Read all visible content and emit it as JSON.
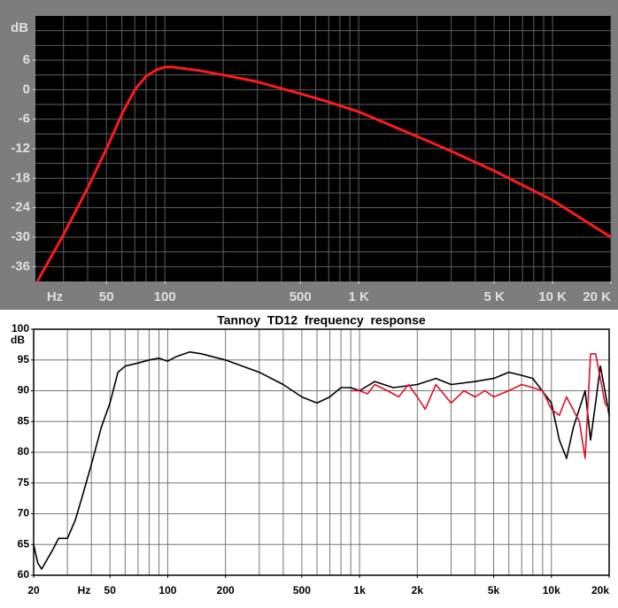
{
  "chart_data": [
    {
      "type": "line",
      "y_label": "dB",
      "x_label": "Hz",
      "xscale": "log",
      "grid": true,
      "xlim": [
        21.5,
        20000
      ],
      "ylim": [
        -39,
        15
      ],
      "xticks": [
        50,
        100,
        500,
        {
          "value": 1000,
          "label": "1 K"
        },
        {
          "value": 5000,
          "label": "5 K"
        },
        {
          "value": 10000,
          "label": "10 K"
        },
        {
          "value": 20000,
          "label": "20 K"
        }
      ],
      "yticks": [
        6,
        0,
        -6,
        -12,
        -18,
        -24,
        -30,
        -36
      ],
      "xgrid": [
        30,
        40,
        50,
        60,
        70,
        80,
        90,
        100,
        200,
        300,
        400,
        500,
        600,
        700,
        800,
        900,
        1000,
        2000,
        3000,
        4000,
        5000,
        6000,
        7000,
        8000,
        9000,
        10000,
        20000
      ],
      "ygrid": [
        12,
        9,
        6,
        3,
        0,
        -3,
        -6,
        -9,
        -12,
        -15,
        -18,
        -21,
        -24,
        -27,
        -30,
        -33,
        -36
      ],
      "series": [
        {
          "color": "#ff1a1a",
          "x": [
            22,
            30,
            40,
            50,
            60,
            70,
            80,
            90,
            100,
            110,
            150,
            200,
            300,
            500,
            700,
            1000,
            2000,
            3000,
            5000,
            10000,
            20000
          ],
          "values": [
            -39,
            -29.5,
            -20,
            -12,
            -5,
            0,
            2.7,
            4,
            4.6,
            4.6,
            3.9,
            3,
            1.6,
            -0.8,
            -2.5,
            -4.5,
            -9.5,
            -12.5,
            -16.5,
            -22.5,
            -30
          ]
        }
      ]
    },
    {
      "type": "line",
      "title": "Tannoy  TD12  frequency  response",
      "y_label": "dB",
      "x_label": "Hz",
      "xscale": "log",
      "grid": true,
      "xlim": [
        20,
        20000
      ],
      "ylim": [
        60,
        100
      ],
      "xticks": [
        20,
        50,
        100,
        200,
        500,
        {
          "value": 1000,
          "label": "1k"
        },
        {
          "value": 2000,
          "label": "2k"
        },
        {
          "value": 5000,
          "label": "5k"
        },
        {
          "value": 10000,
          "label": "10k"
        },
        {
          "value": 20000,
          "label": "20k"
        }
      ],
      "yticks": [
        60,
        65,
        70,
        75,
        80,
        85,
        90,
        95,
        100
      ],
      "xgrid": [
        20,
        30,
        40,
        50,
        60,
        70,
        80,
        90,
        100,
        200,
        300,
        400,
        500,
        600,
        700,
        800,
        900,
        1000,
        2000,
        3000,
        4000,
        5000,
        6000,
        7000,
        8000,
        9000,
        10000,
        20000
      ],
      "ygrid": [
        65,
        70,
        75,
        80,
        85,
        90,
        95
      ],
      "series": [
        {
          "color": "#000000",
          "x": [
            20,
            21,
            22,
            25,
            27,
            30,
            33,
            36,
            40,
            45,
            50,
            55,
            60,
            70,
            80,
            90,
            100,
            110,
            130,
            150,
            200,
            300,
            400,
            500,
            600,
            700,
            800,
            900,
            1000,
            1200,
            1500,
            2000,
            2500,
            3000,
            4000,
            5000,
            6000,
            7000,
            8000,
            10000,
            11000,
            12000,
            13000,
            15000,
            16000,
            17000,
            18000,
            19000,
            20000
          ],
          "values": [
            65,
            62,
            61,
            64,
            66,
            66,
            69,
            73,
            78,
            84,
            88,
            93,
            94,
            94.5,
            95,
            95.3,
            94.8,
            95.5,
            96.3,
            96,
            95,
            93,
            91,
            89,
            88,
            89,
            90.5,
            90.5,
            90,
            91.5,
            90.5,
            91,
            92,
            91,
            91.5,
            92,
            93,
            92.5,
            92,
            88,
            82,
            79,
            84,
            90,
            82,
            88,
            94,
            90,
            86
          ]
        },
        {
          "color": "#e0102a",
          "x": [
            900,
            1000,
            1100,
            1200,
            1400,
            1600,
            1800,
            2000,
            2200,
            2500,
            3000,
            3500,
            4000,
            4500,
            5000,
            6000,
            7000,
            8000,
            9000,
            10000,
            11000,
            12000,
            14000,
            15000,
            16000,
            17000,
            18000,
            19000,
            20000
          ],
          "values": [
            90,
            90,
            89.5,
            91,
            90,
            89,
            91,
            89,
            87,
            91,
            88,
            90,
            89,
            90,
            89,
            90,
            91,
            90.5,
            90,
            87,
            86,
            89,
            85,
            79,
            96,
            96,
            92,
            88,
            87
          ]
        }
      ]
    }
  ]
}
